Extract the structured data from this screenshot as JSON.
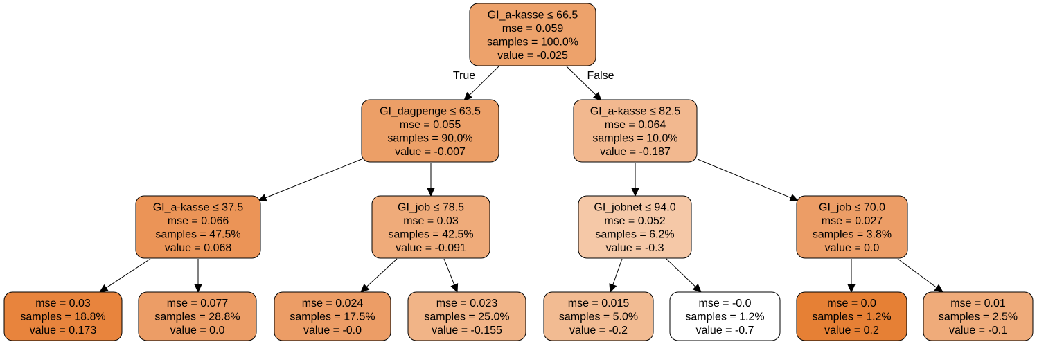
{
  "tree": {
    "nodes": [
      {
        "id": "n0",
        "lines": [
          "GI_a-kasse ≤ 66.5",
          "mse = 0.059",
          "samples = 100.0%",
          "value = -0.025"
        ],
        "fill": "#eda26b"
      },
      {
        "id": "n1",
        "lines": [
          "GI_dagpenge ≤ 63.5",
          "mse = 0.055",
          "samples = 90.0%",
          "value = -0.007"
        ],
        "fill": "#ec9f67"
      },
      {
        "id": "n2",
        "lines": [
          "GI_a-kasse ≤ 82.5",
          "mse = 0.064",
          "samples = 10.0%",
          "value = -0.187"
        ],
        "fill": "#f2b88f"
      },
      {
        "id": "n3",
        "lines": [
          "GI_a-kasse ≤ 37.5",
          "mse = 0.066",
          "samples = 47.5%",
          "value = 0.068"
        ],
        "fill": "#eb9457"
      },
      {
        "id": "n4",
        "lines": [
          "GI_job ≤ 78.5",
          "mse = 0.03",
          "samples = 42.5%",
          "value = -0.091"
        ],
        "fill": "#efab7a"
      },
      {
        "id": "n5",
        "lines": [
          "GI_jobnet ≤ 94.0",
          "mse = 0.052",
          "samples = 6.2%",
          "value = -0.3"
        ],
        "fill": "#f5c8a7"
      },
      {
        "id": "n6",
        "lines": [
          "GI_job ≤ 70.0",
          "mse = 0.027",
          "samples = 3.8%",
          "value = 0.0"
        ],
        "fill": "#ec9d66"
      },
      {
        "id": "n7",
        "lines": [
          "mse = 0.03",
          "samples = 18.8%",
          "value = 0.173"
        ],
        "fill": "#e8843d"
      },
      {
        "id": "n8",
        "lines": [
          "mse = 0.077",
          "samples = 28.8%",
          "value = 0.0"
        ],
        "fill": "#ec9d66"
      },
      {
        "id": "n9",
        "lines": [
          "mse = 0.024",
          "samples = 17.5%",
          "value = -0.0"
        ],
        "fill": "#ec9d66"
      },
      {
        "id": "n10",
        "lines": [
          "mse = 0.023",
          "samples = 25.0%",
          "value = -0.155"
        ],
        "fill": "#f1b487"
      },
      {
        "id": "n11",
        "lines": [
          "mse = 0.015",
          "samples = 5.0%",
          "value = -0.2"
        ],
        "fill": "#f2bb92"
      },
      {
        "id": "n12",
        "lines": [
          "mse = -0.0",
          "samples = 1.2%",
          "value = -0.7"
        ],
        "fill": "#ffffff"
      },
      {
        "id": "n13",
        "lines": [
          "mse = 0.0",
          "samples = 1.2%",
          "value = 0.2"
        ],
        "fill": "#e68035"
      },
      {
        "id": "n14",
        "lines": [
          "mse = 0.01",
          "samples = 2.5%",
          "value = -0.1"
        ],
        "fill": "#efab7a"
      }
    ],
    "edges": [
      {
        "from": "n0",
        "to": "n1",
        "label": "True"
      },
      {
        "from": "n0",
        "to": "n2",
        "label": "False"
      },
      {
        "from": "n1",
        "to": "n3",
        "label": ""
      },
      {
        "from": "n1",
        "to": "n4",
        "label": ""
      },
      {
        "from": "n2",
        "to": "n5",
        "label": ""
      },
      {
        "from": "n2",
        "to": "n6",
        "label": ""
      },
      {
        "from": "n3",
        "to": "n7",
        "label": ""
      },
      {
        "from": "n3",
        "to": "n8",
        "label": ""
      },
      {
        "from": "n4",
        "to": "n9",
        "label": ""
      },
      {
        "from": "n4",
        "to": "n10",
        "label": ""
      },
      {
        "from": "n5",
        "to": "n11",
        "label": ""
      },
      {
        "from": "n5",
        "to": "n12",
        "label": ""
      },
      {
        "from": "n6",
        "to": "n13",
        "label": ""
      },
      {
        "from": "n6",
        "to": "n14",
        "label": ""
      }
    ]
  }
}
